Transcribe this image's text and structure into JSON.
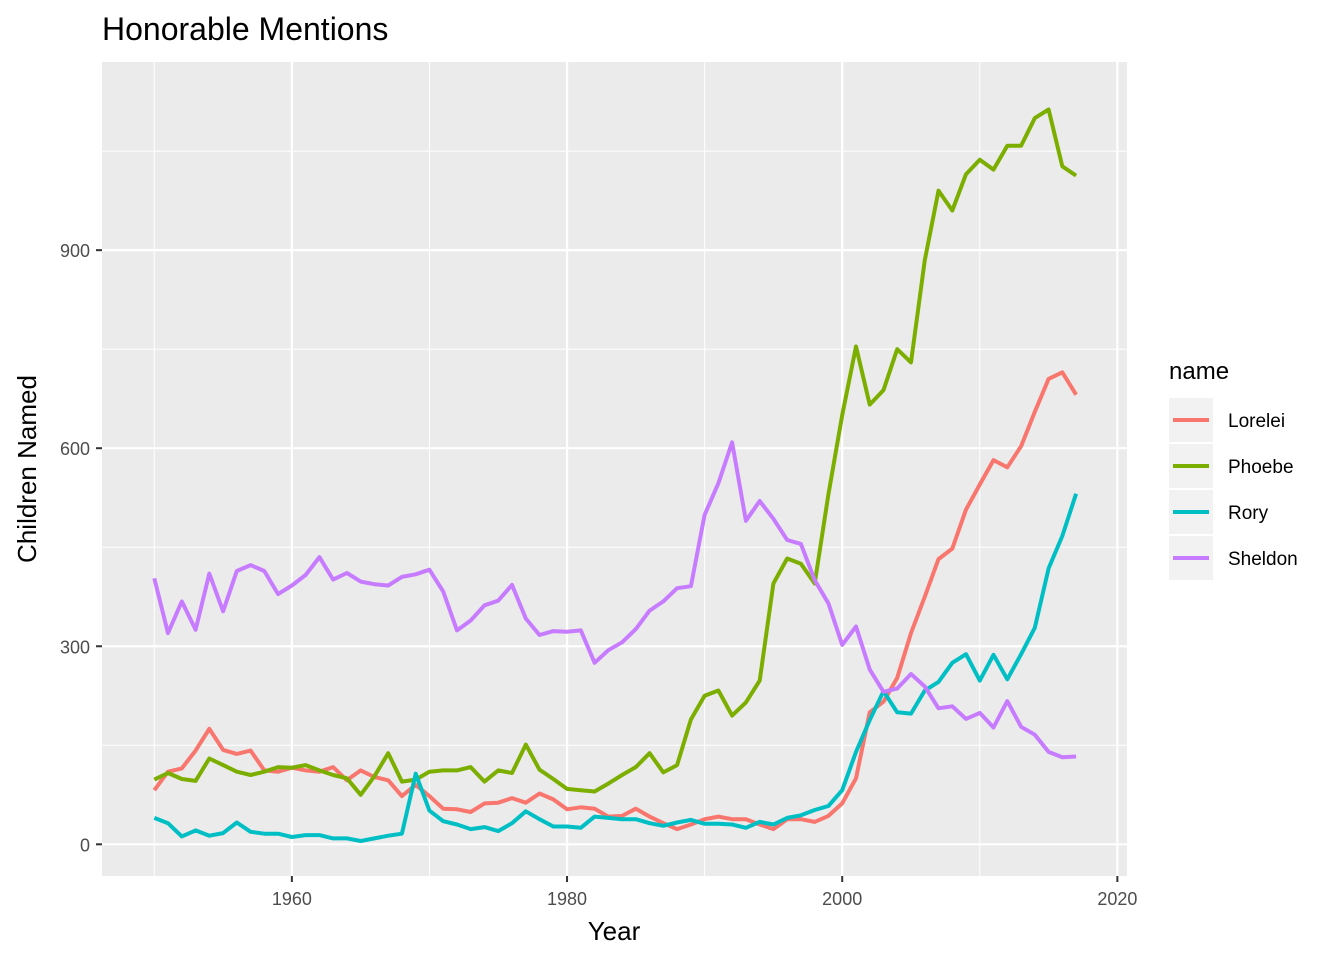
{
  "chart_data": {
    "type": "line",
    "title": "Honorable Mentions",
    "xlabel": "Year",
    "ylabel": "Children Named",
    "xlim": [
      1946.2,
      2020.7
    ],
    "ylim": [
      -48,
      1185
    ],
    "xticks": [
      1960,
      1980,
      2000,
      2020
    ],
    "yticks": [
      0,
      300,
      600,
      900
    ],
    "grid": true,
    "legend": {
      "title": "name",
      "position": "right"
    },
    "x": [
      1950,
      1951,
      1952,
      1953,
      1954,
      1955,
      1956,
      1957,
      1958,
      1959,
      1960,
      1961,
      1962,
      1963,
      1964,
      1965,
      1966,
      1967,
      1968,
      1969,
      1970,
      1971,
      1972,
      1973,
      1974,
      1975,
      1976,
      1977,
      1978,
      1979,
      1980,
      1981,
      1982,
      1983,
      1984,
      1985,
      1986,
      1987,
      1988,
      1989,
      1990,
      1991,
      1992,
      1993,
      1994,
      1995,
      1996,
      1997,
      1998,
      1999,
      2000,
      2001,
      2002,
      2003,
      2004,
      2005,
      2006,
      2007,
      2008,
      2009,
      2010,
      2011,
      2012,
      2013,
      2014,
      2015,
      2016,
      2017
    ],
    "series": [
      {
        "name": "Lorelei",
        "color": "#f8766d",
        "values": [
          82,
          110,
          115,
          142,
          175,
          143,
          137,
          142,
          112,
          110,
          116,
          112,
          110,
          117,
          97,
          112,
          102,
          97,
          73,
          90,
          73,
          54,
          53,
          49,
          62,
          63,
          70,
          63,
          77,
          68,
          53,
          56,
          54,
          42,
          43,
          54,
          42,
          32,
          23,
          30,
          38,
          42,
          38,
          38,
          30,
          23,
          38,
          38,
          34,
          43,
          62,
          100,
          200,
          216,
          252,
          320,
          375,
          432,
          448,
          507,
          545,
          582,
          571,
          603,
          655,
          705,
          715,
          681
        ]
      },
      {
        "name": "Phoebe",
        "color": "#7cae00",
        "values": [
          98,
          108,
          99,
          96,
          130,
          120,
          110,
          105,
          110,
          117,
          116,
          120,
          112,
          105,
          100,
          75,
          103,
          138,
          95,
          98,
          110,
          112,
          112,
          117,
          95,
          112,
          108,
          151,
          113,
          99,
          84,
          82,
          80,
          92,
          105,
          117,
          138,
          109,
          120,
          189,
          225,
          233,
          195,
          215,
          248,
          395,
          433,
          425,
          395,
          530,
          650,
          754,
          666,
          688,
          750,
          730,
          885,
          990,
          960,
          1015,
          1037,
          1022,
          1058,
          1058,
          1100,
          1113,
          1027,
          1013
        ]
      },
      {
        "name": "Rory",
        "color": "#00bfc4",
        "values": [
          40,
          32,
          12,
          21,
          13,
          17,
          33,
          19,
          16,
          16,
          11,
          14,
          14,
          9,
          9,
          5,
          9,
          13,
          16,
          107,
          51,
          35,
          30,
          23,
          26,
          20,
          32,
          50,
          38,
          27,
          27,
          25,
          42,
          40,
          38,
          38,
          32,
          28,
          33,
          37,
          31,
          31,
          30,
          25,
          34,
          30,
          40,
          44,
          52,
          58,
          82,
          140,
          188,
          232,
          200,
          198,
          233,
          246,
          275,
          288,
          248,
          287,
          250,
          288,
          328,
          418,
          467,
          531
        ]
      },
      {
        "name": "Sheldon",
        "color": "#c77cff",
        "values": [
          403,
          320,
          368,
          325,
          410,
          353,
          414,
          423,
          414,
          379,
          392,
          408,
          435,
          401,
          411,
          398,
          394,
          392,
          405,
          409,
          416,
          383,
          324,
          339,
          362,
          369,
          393,
          342,
          317,
          323,
          322,
          324,
          275,
          294,
          306,
          326,
          354,
          368,
          388,
          391,
          499,
          547,
          609,
          490,
          520,
          493,
          461,
          455,
          400,
          365,
          302,
          330,
          265,
          231,
          236,
          258,
          239,
          206,
          209,
          190,
          199,
          177,
          217,
          178,
          166,
          140,
          132,
          133
        ]
      }
    ]
  }
}
